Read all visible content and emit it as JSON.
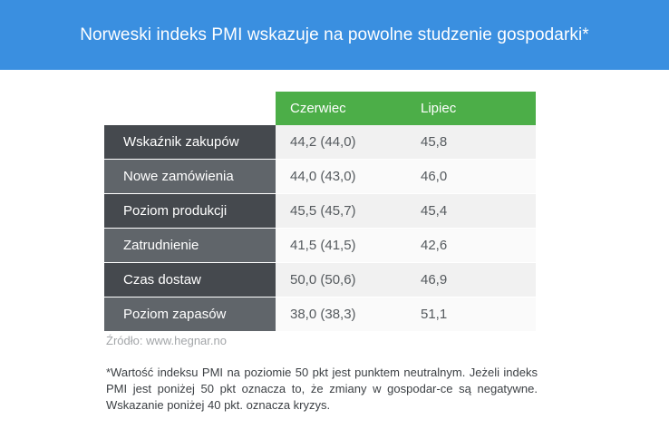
{
  "chart_data": {
    "type": "table",
    "title": "Norweski indeks PMI wskazuje na powolne studzenie gospodarki*",
    "columns": [
      "Czerwiec",
      "Lipiec"
    ],
    "rows": [
      {
        "label": "Wskaźnik zakupów",
        "values": [
          "44,2 (44,0)",
          "45,8"
        ]
      },
      {
        "label": "Nowe zamówienia",
        "values": [
          "44,0 (43,0)",
          "46,0"
        ]
      },
      {
        "label": "Poziom produkcji",
        "values": [
          "45,5 (45,7)",
          "45,4"
        ]
      },
      {
        "label": "Zatrudnienie",
        "values": [
          "41,5 (41,5)",
          "42,6"
        ]
      },
      {
        "label": "Czas dostaw",
        "values": [
          "50,0 (50,6)",
          "46,9"
        ]
      },
      {
        "label": "Poziom zapasów",
        "values": [
          "38,0 (38,3)",
          "51,1"
        ]
      }
    ],
    "source": "Źródło: www.hegnar.no",
    "note": "*Wartość indeksu PMI na poziomie 50 pkt jest punktem neutralnym. Jeżeli indeks PMI jest poniżej 50 pkt oznacza to, że zmiany w gospodar-ce są negatywne. Wskazanie poniżej 40 pkt. oznacza kryzys."
  },
  "colors": {
    "header_bg": "#3a8fe0",
    "column_header_bg": "#4cae48",
    "row_label_dark": "#45494e",
    "row_label_light": "#60656a"
  }
}
